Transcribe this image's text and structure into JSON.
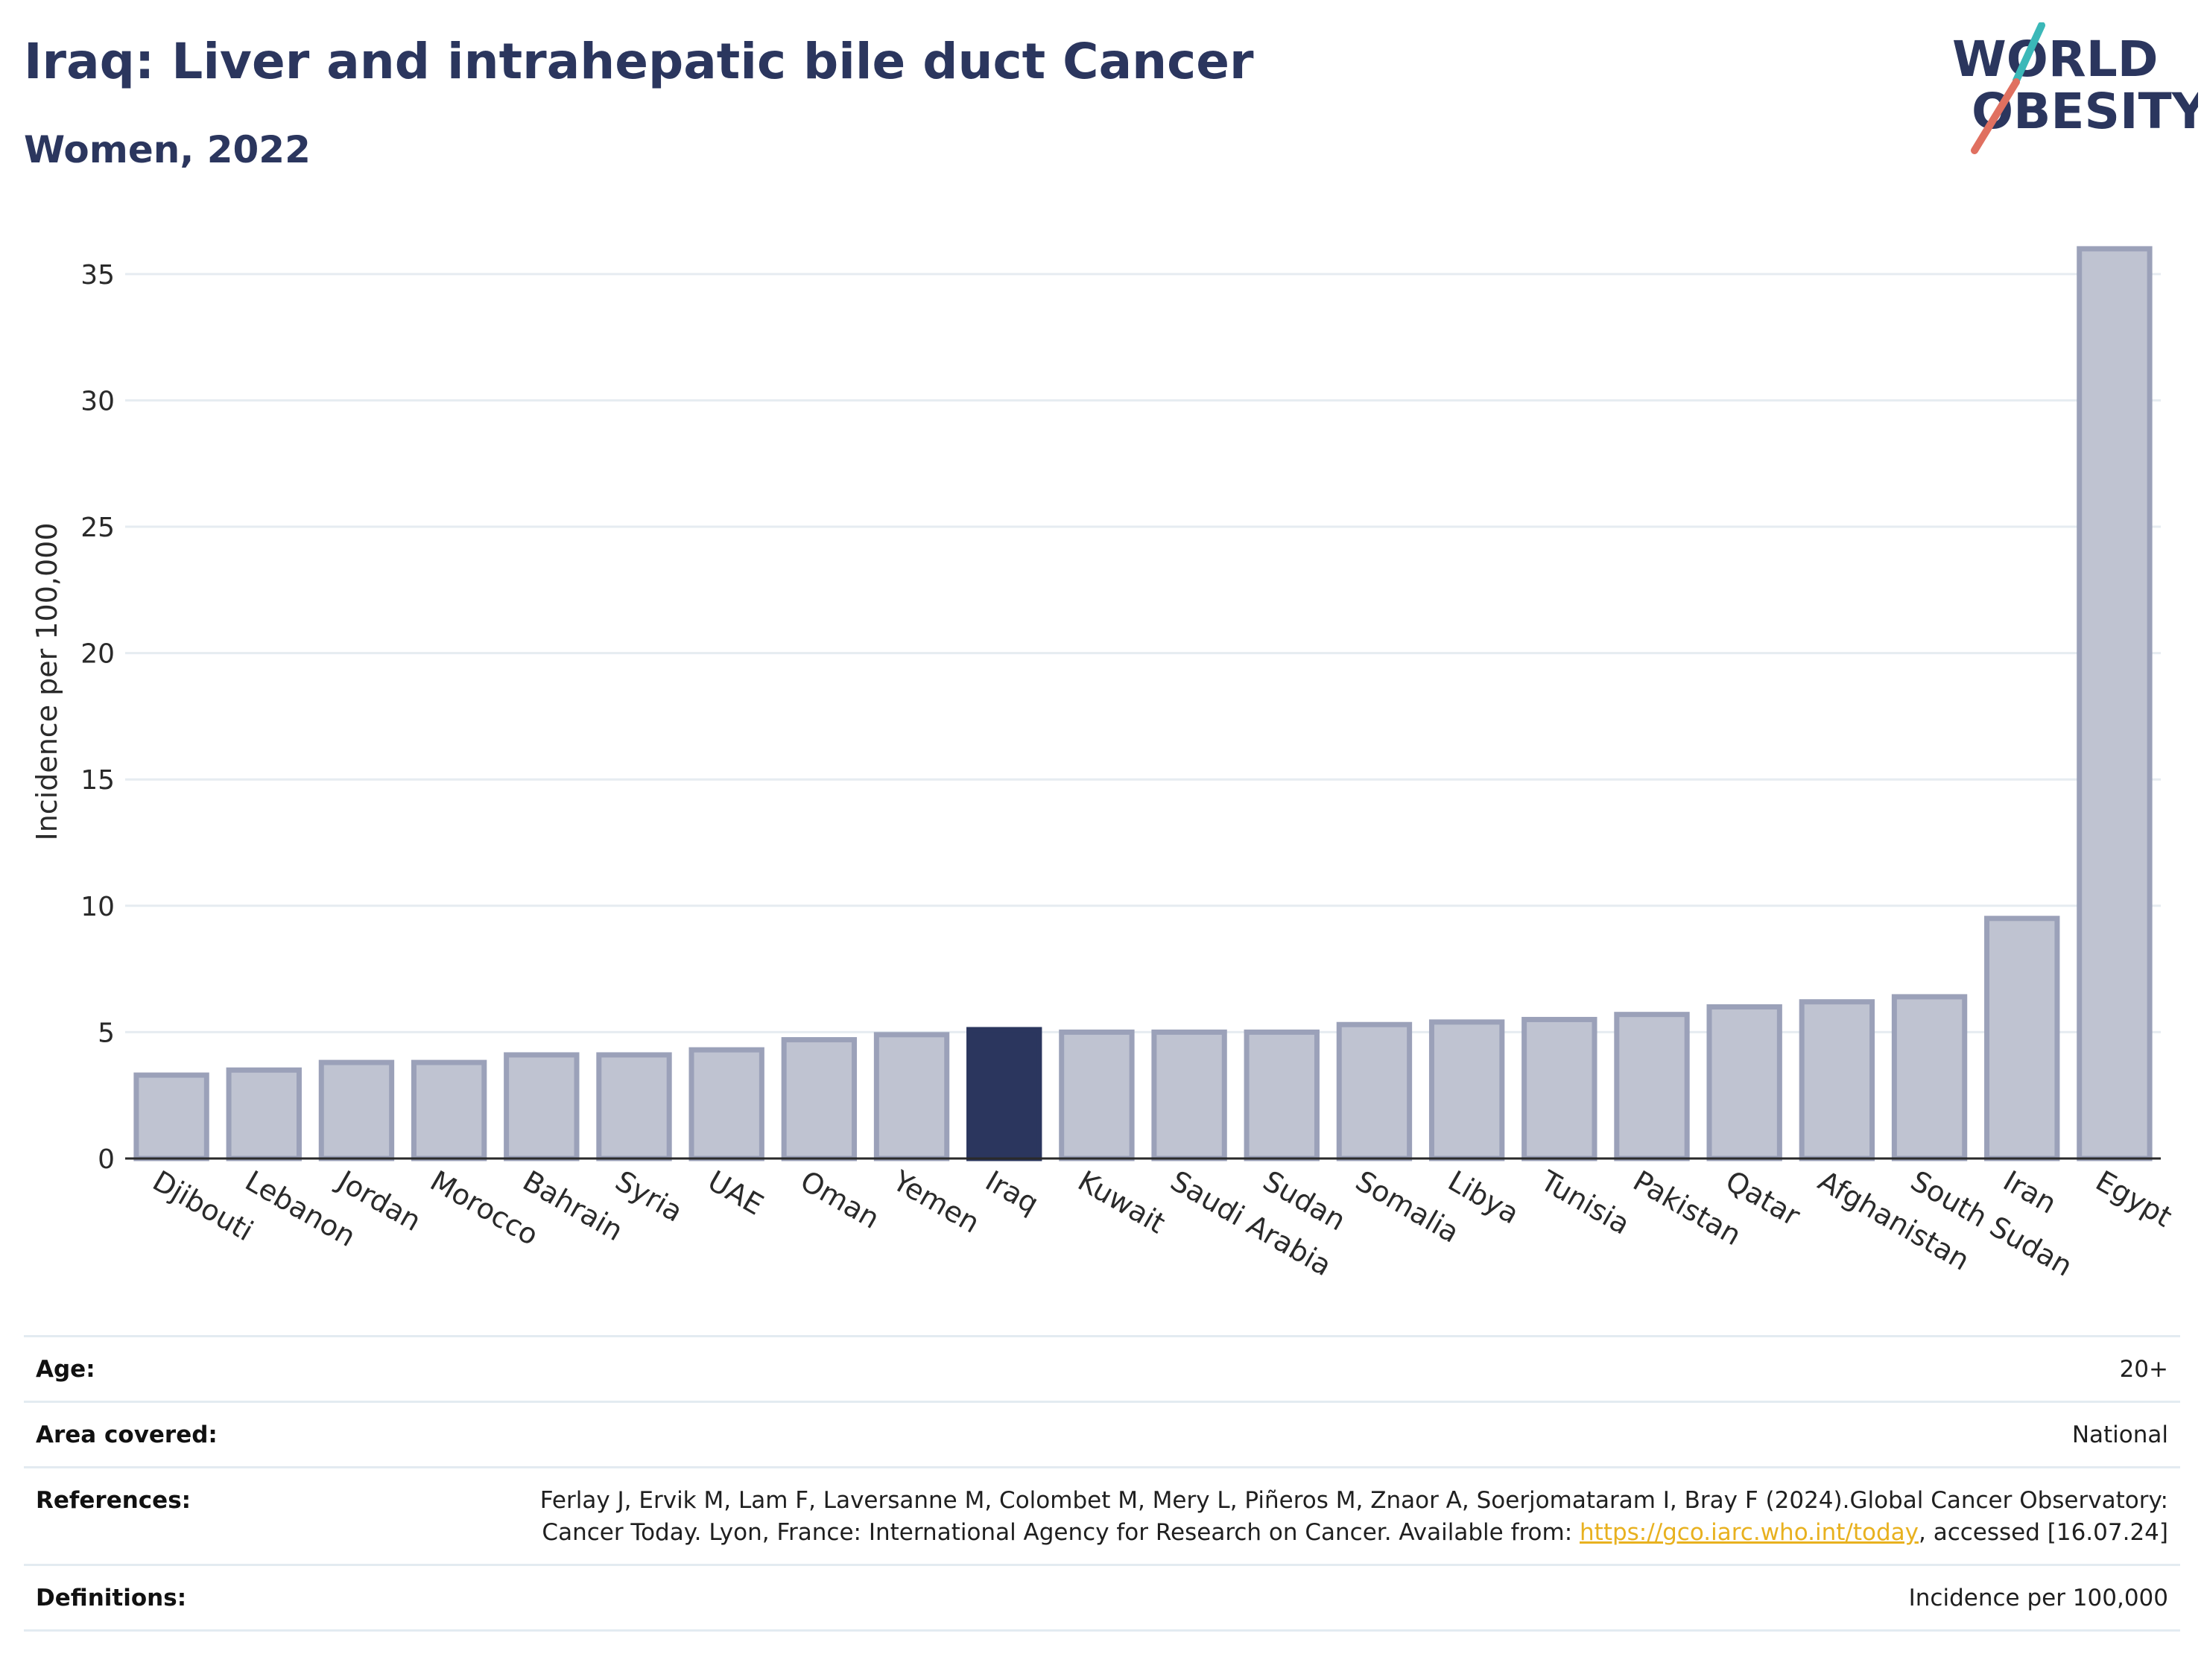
{
  "header": {
    "title": "Iraq: Liver and intrahepatic bile duct Cancer",
    "subtitle": "Women, 2022"
  },
  "logo": {
    "line1": "WORLD",
    "line2": "OBESITY",
    "accent_teal": "#3bb8b8",
    "accent_coral": "#e07060",
    "text_color": "#2b365e"
  },
  "chart_data": {
    "type": "bar",
    "categories": [
      "Djibouti",
      "Lebanon",
      "Jordan",
      "Morocco",
      "Bahrain",
      "Syria",
      "UAE",
      "Oman",
      "Yemen",
      "Iraq",
      "Kuwait",
      "Saudi Arabia",
      "Sudan",
      "Somalia",
      "Libya",
      "Tunisia",
      "Pakistan",
      "Qatar",
      "Afghanistan",
      "South Sudan",
      "Iran",
      "Egypt"
    ],
    "values": [
      3.3,
      3.5,
      3.8,
      3.8,
      4.1,
      4.1,
      4.3,
      4.7,
      4.9,
      5.1,
      5.0,
      5.0,
      5.0,
      5.3,
      5.4,
      5.5,
      5.7,
      6.0,
      6.2,
      6.4,
      9.5,
      36.0
    ],
    "highlight": "Iraq",
    "ylabel": "Incidence per 100,000",
    "xlabel": "",
    "ylim": [
      0,
      37
    ],
    "yticks": [
      0,
      5,
      10,
      15,
      20,
      25,
      30,
      35
    ],
    "grid": true,
    "colors": {
      "bar_fill": "#bfc3d1",
      "bar_stroke": "#9ba1b9",
      "highlight_fill": "#2b365e",
      "grid": "#e6ecf1",
      "axis": "#2a2a2a"
    }
  },
  "meta": {
    "age": {
      "label": "Age:",
      "value": "20+"
    },
    "area": {
      "label": "Area covered:",
      "value": "National"
    },
    "references": {
      "label": "References:",
      "text_before": "Ferlay J, Ervik M, Lam F, Laversanne M, Colombet M, Mery L, Piñeros M, Znaor A, Soerjomataram I, Bray F (2024).Global Cancer Observatory: Cancer Today. Lyon, France: International Agency for Research on Cancer. Available from: ",
      "link": "https://gco.iarc.who.int/today",
      "text_after": ", accessed [16.07.24]"
    },
    "definitions": {
      "label": "Definitions:",
      "value": "Incidence per 100,000"
    }
  }
}
